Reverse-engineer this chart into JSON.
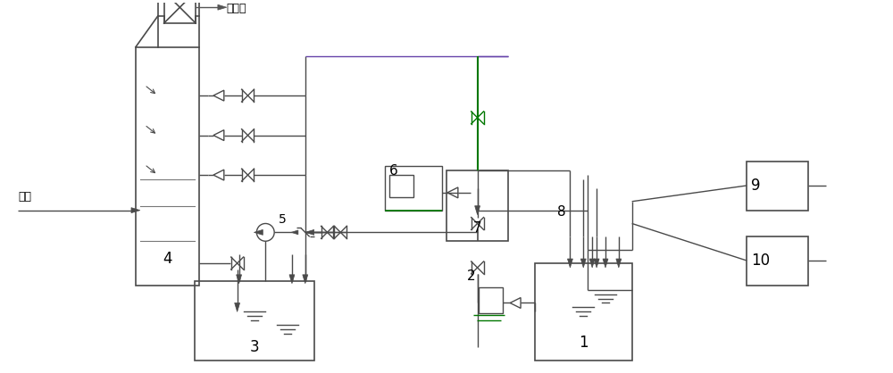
{
  "fig_width": 10.0,
  "fig_height": 4.18,
  "dpi": 100,
  "bg_color": "#ffffff",
  "lc": "#4a4a4a",
  "lc_green": "#007700",
  "lc_dark": "#222222",
  "lw": 1.0,
  "lw_thick": 1.5,
  "labels": {
    "yanqi": "烟气",
    "quyancong": "去烟囱",
    "n1": "1",
    "n2": "2",
    "n3": "3",
    "n4": "4",
    "n5": "5",
    "n6": "6",
    "n7": "7",
    "n8": "8",
    "n9": "9",
    "n10": "10"
  },
  "xlim": [
    0,
    1000
  ],
  "ylim": [
    0,
    418
  ]
}
